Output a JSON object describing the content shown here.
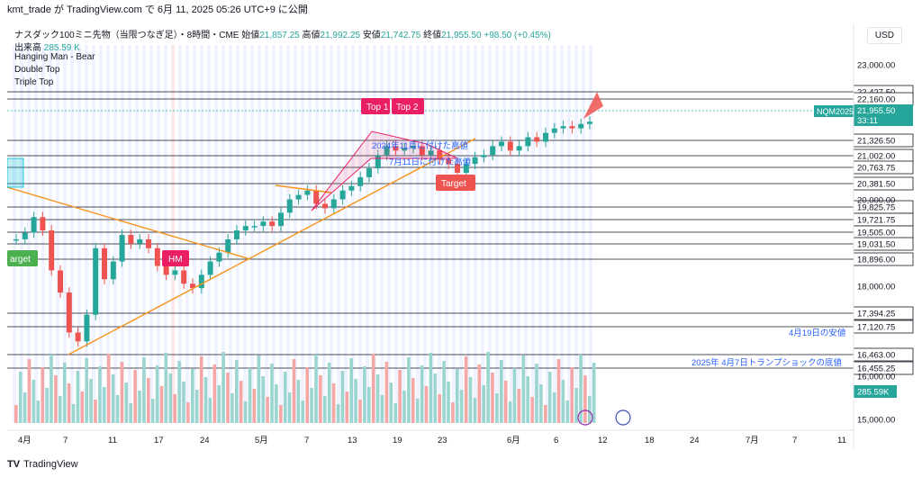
{
  "topbar": {
    "text": "kmt_trade が TradingView.com で 6月 11, 2025 05:26 UTC+9 に公開"
  },
  "legend": {
    "symbol": "ナスダック100ミニ先物（当限つなぎ足）・8時間・CME",
    "open_label": "始値",
    "open": "21,857.25",
    "high_label": "高値",
    "high": "21,992.25",
    "low_label": "安値",
    "low": "21,742.75",
    "close_label": "終値",
    "close": "21,955.50",
    "change": "+98.50 (+0.45%)",
    "volume_label": "出来高",
    "volume": "285.59 K"
  },
  "indicators": [
    "Hanging Man - Bear",
    "Double Top",
    "Triple Top"
  ],
  "currency": "USD",
  "price_axis": {
    "ticks": [
      "23,000.00",
      "20,000.00",
      "18,000.00",
      "16,000.00",
      "15,000.00"
    ],
    "levels": [
      "22,427.50",
      "22,160.00",
      "21,326.50",
      "21,002.00",
      "20,763.75",
      "20,381.50",
      "19,825.75",
      "19,721.75",
      "19,505.00",
      "19,031.50",
      "18,896.00",
      "17,394.25",
      "17,120.75",
      "16,463.00",
      "16,455.25"
    ],
    "last_price": "21,955.50",
    "countdown": "33:11",
    "symbol_tag": "NQM2025",
    "volume_tag": "285.59K",
    "last_price_color": "#26a69a"
  },
  "time_axis": [
    "4月",
    "7",
    "11",
    "17",
    "24",
    "5月",
    "7",
    "13",
    "19",
    "23",
    "6月",
    "6",
    "12",
    "18",
    "24",
    "7月",
    "7",
    "11"
  ],
  "annotations": {
    "top1": "Top 1",
    "top2": "Top 2",
    "hm": "HM",
    "target_left": "arget",
    "target_right": "Target",
    "label_2024": "2024年11月に付けた高値",
    "label_jul11": "7月11日に付けた高値",
    "label_apr19": "4月19日の安値",
    "label_2025": "2025年 4月7日トランプショックの底値"
  },
  "footer": {
    "brand": "TradingView"
  },
  "colors": {
    "up": "#26a69a",
    "down": "#ef5350",
    "trend": "#f7931a",
    "blue_label": "#2962ff"
  }
}
